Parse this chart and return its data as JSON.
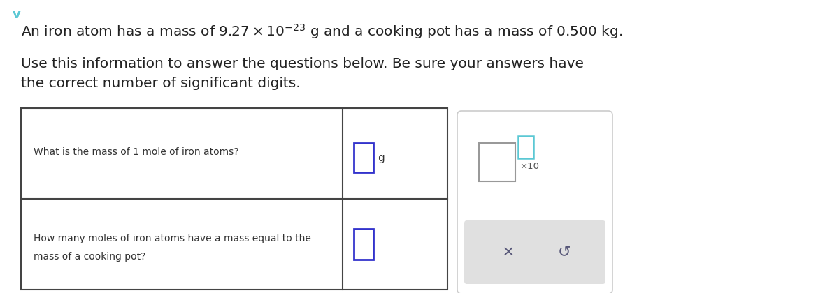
{
  "bg_color": "#ffffff",
  "chevron_color": "#5bc8d4",
  "title_text": "An iron atom has a mass of $9.27 \\times 10^{-23}$ g and a cooking pot has a mass of $0.500$ kg.",
  "subtitle_line1": "Use this information to answer the questions below. Be sure your answers have",
  "subtitle_line2": "the correct number of significant digits.",
  "q1_text": "What is the mass of 1 mole of iron atoms?",
  "q2_line1": "How many moles of iron atoms have a mass equal to the",
  "q2_line2": "mass of a cooking pot?",
  "table_box_color": "#3333cc",
  "popup_box_main_color": "#888888",
  "popup_box_sup_color": "#5bc8d4",
  "btn_color": "#555577"
}
